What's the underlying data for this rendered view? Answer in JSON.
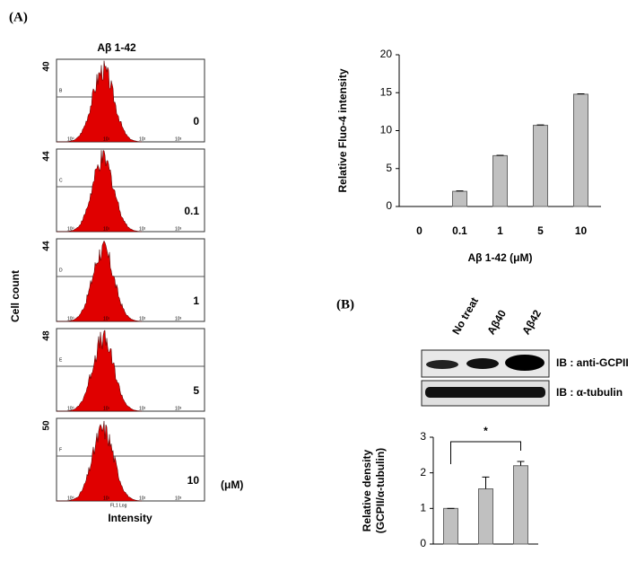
{
  "panel_a_label": "(A)",
  "panel_b_label": "(B)",
  "histograms": {
    "title": "Aβ 1-42",
    "y_label": "Cell count",
    "x_label": "Intensity",
    "x_axis_name": "FL1 Log",
    "unit": "(μM)",
    "x_tick_labels": [
      "10⁰",
      "10¹",
      "10²",
      "10³"
    ],
    "panels": [
      {
        "ymax": "40",
        "gate": "B",
        "dose": "0"
      },
      {
        "ymax": "44",
        "gate": "C",
        "dose": "0.1"
      },
      {
        "ymax": "44",
        "gate": "D",
        "dose": "1"
      },
      {
        "ymax": "48",
        "gate": "E",
        "dose": "5"
      },
      {
        "ymax": "50",
        "gate": "F",
        "dose": "10"
      }
    ]
  },
  "blot": {
    "lanes": [
      "No treat",
      "Aβ40",
      "Aβ42"
    ],
    "rows": [
      "IB : anti-GCPII",
      "IB : α-tubulin"
    ]
  },
  "chart_data": [
    {
      "type": "bar",
      "ylabel": "Relative Fluo-4 intensity",
      "xlabel": "Aβ 1-42 (μM)",
      "categories": [
        "0",
        "0.1",
        "1",
        "5",
        "10"
      ],
      "values": [
        0,
        2,
        6.7,
        10.7,
        14.8
      ],
      "errors": [
        0,
        0.05,
        0.05,
        0.05,
        0.05
      ],
      "color": "#c0c0c0",
      "ylim": [
        0,
        20
      ],
      "yticks": [
        0,
        5,
        10,
        15,
        20
      ]
    },
    {
      "type": "bar",
      "ylabel": [
        "Relative density",
        "(GCPII/α-tubulin)"
      ],
      "categories": [
        null,
        null,
        null
      ],
      "values": [
        1,
        1.55,
        2.2
      ],
      "errors": [
        0,
        0.33,
        0.12
      ],
      "color": "#c0c0c0",
      "ylim": [
        0,
        3
      ],
      "yticks": [
        0,
        1,
        2,
        3
      ],
      "annotation": "*"
    }
  ]
}
